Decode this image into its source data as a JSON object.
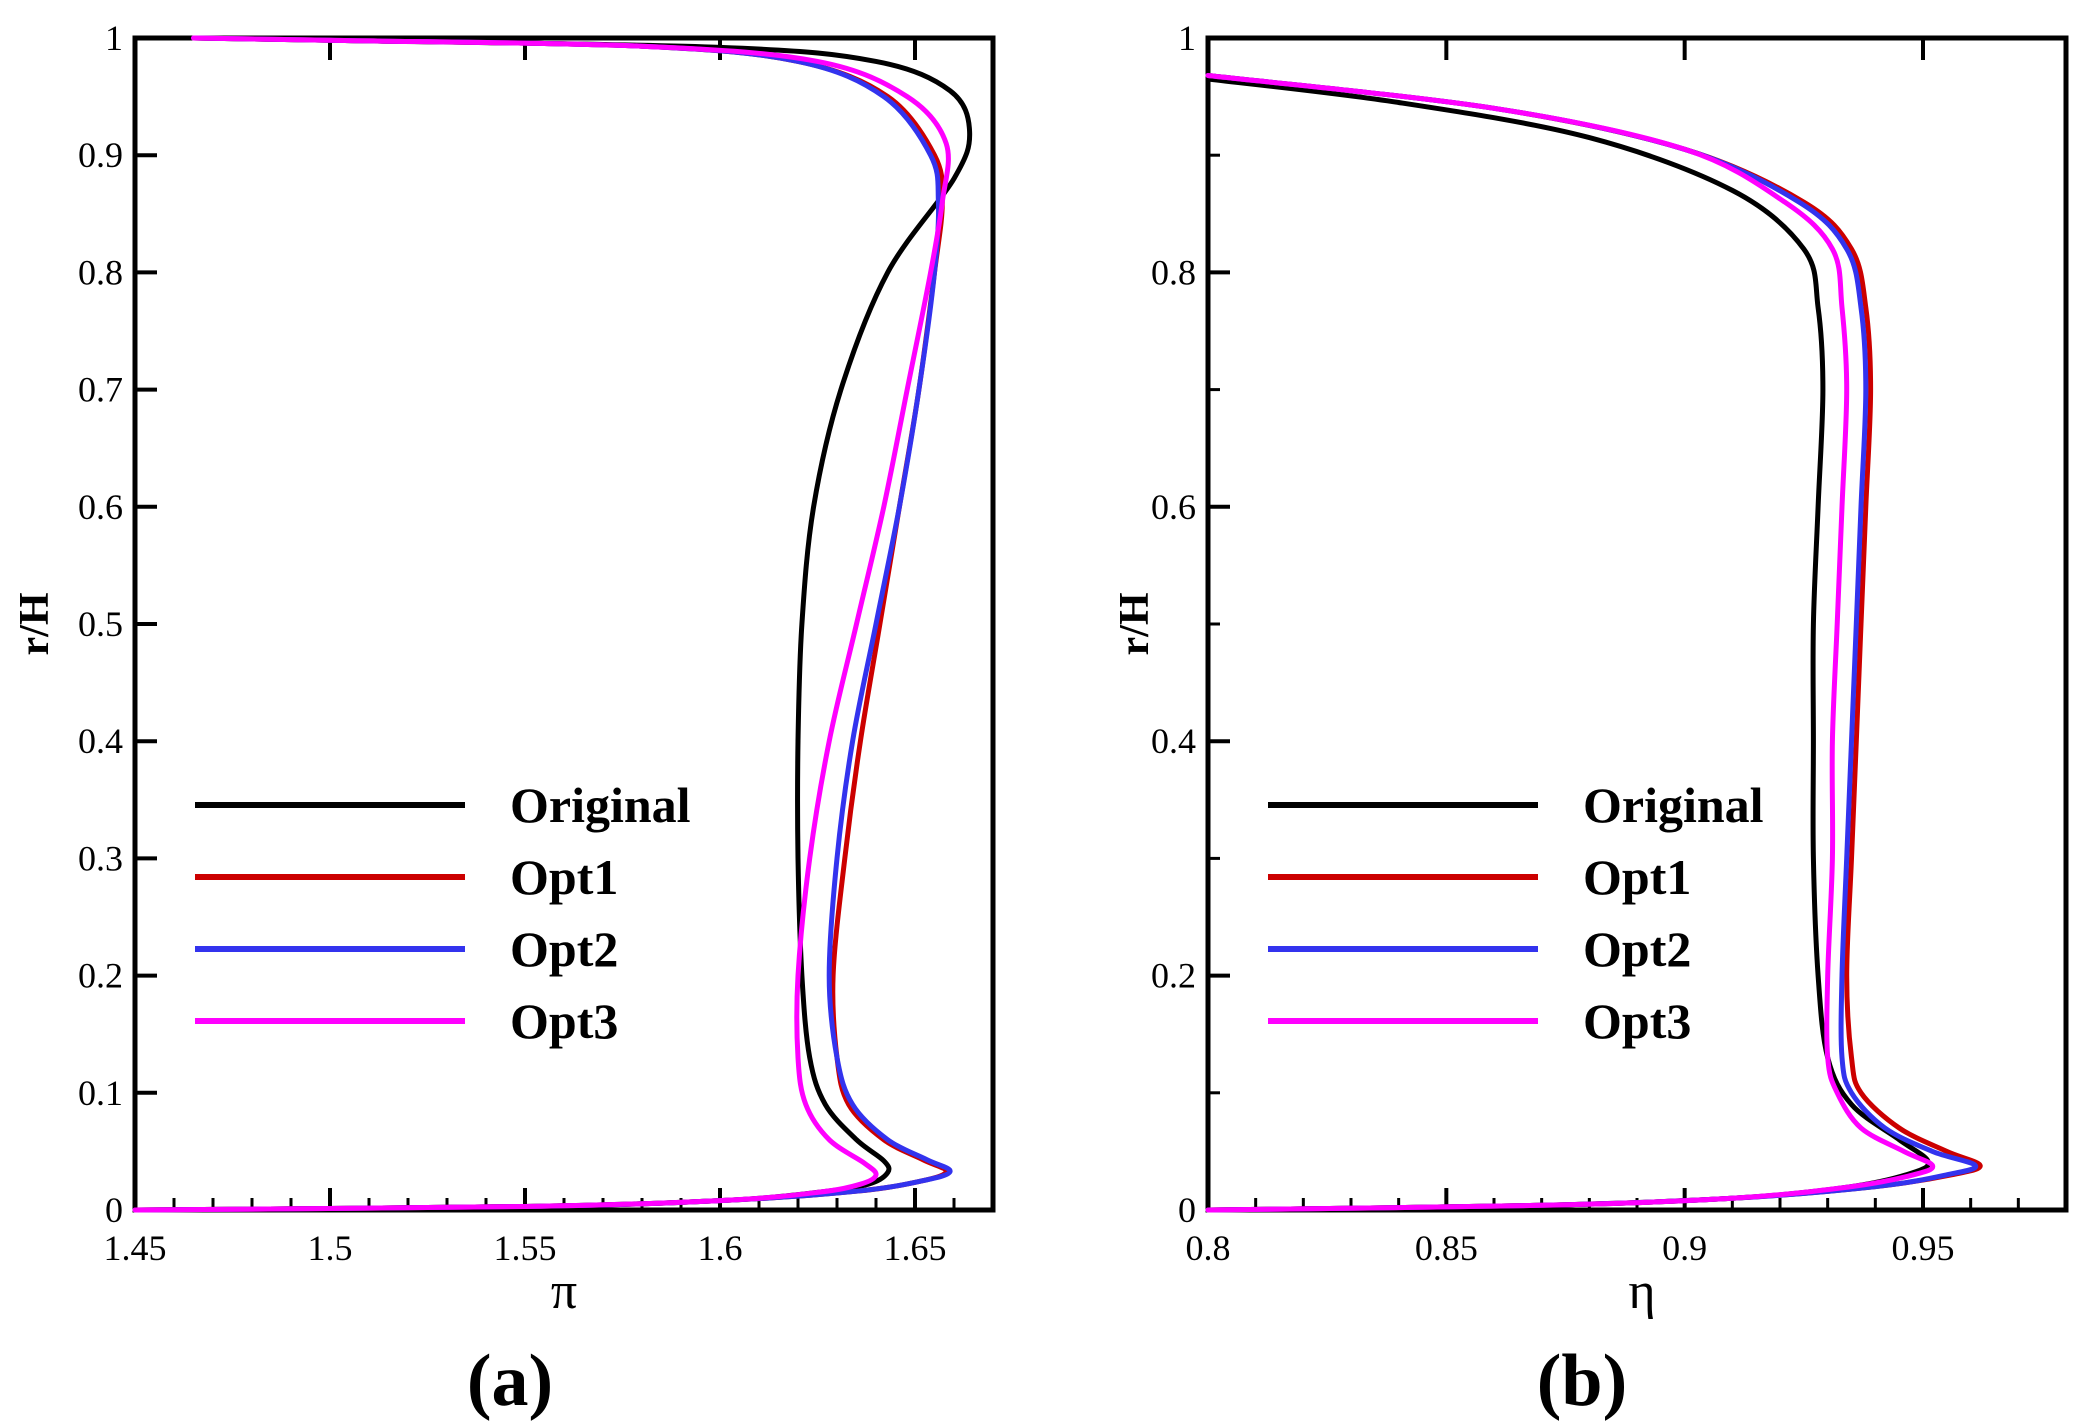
{
  "chart_data": [
    {
      "panel": "(a)",
      "type": "line",
      "xlabel": "π",
      "ylabel": "r/H",
      "xlim": [
        1.45,
        1.67
      ],
      "ylim": [
        0,
        1
      ],
      "xticks": [
        1.45,
        1.5,
        1.55,
        1.6,
        1.65
      ],
      "xtick_labels": [
        "1.45",
        "1.5",
        "1.55",
        "1.6",
        "1.65"
      ],
      "yticks": [
        0,
        0.1,
        0.2,
        0.3,
        0.4,
        0.5,
        0.6,
        0.7,
        0.8,
        0.9,
        1
      ],
      "ytick_labels": [
        "0",
        "0.1",
        "0.2",
        "0.3",
        "0.4",
        "0.5",
        "0.6",
        "0.7",
        "0.8",
        "0.9",
        "1"
      ],
      "legend_position": "lower-left",
      "series": [
        {
          "name": "Original",
          "color": "#000000",
          "points": [
            [
              1.45,
              0.0
            ],
            [
              1.55,
              0.003
            ],
            [
              1.6,
              0.008
            ],
            [
              1.625,
              0.015
            ],
            [
              1.638,
              0.022
            ],
            [
              1.643,
              0.032
            ],
            [
              1.642,
              0.042
            ],
            [
              1.635,
              0.06
            ],
            [
              1.627,
              0.09
            ],
            [
              1.623,
              0.13
            ],
            [
              1.621,
              0.2
            ],
            [
              1.62,
              0.3
            ],
            [
              1.62,
              0.4
            ],
            [
              1.621,
              0.5
            ],
            [
              1.624,
              0.6
            ],
            [
              1.631,
              0.7
            ],
            [
              1.643,
              0.8
            ],
            [
              1.66,
              0.88
            ],
            [
              1.664,
              0.92
            ],
            [
              1.659,
              0.955
            ],
            [
              1.64,
              0.98
            ],
            [
              1.6,
              0.992
            ],
            [
              1.5,
              0.998
            ],
            [
              1.465,
              1.0
            ]
          ]
        },
        {
          "name": "Opt1",
          "color": "#cc0000",
          "points": [
            [
              1.45,
              0.0
            ],
            [
              1.55,
              0.003
            ],
            [
              1.6,
              0.008
            ],
            [
              1.635,
              0.016
            ],
            [
              1.652,
              0.025
            ],
            [
              1.658,
              0.033
            ],
            [
              1.652,
              0.043
            ],
            [
              1.642,
              0.06
            ],
            [
              1.633,
              0.09
            ],
            [
              1.63,
              0.13
            ],
            [
              1.629,
              0.2
            ],
            [
              1.632,
              0.3
            ],
            [
              1.636,
              0.4
            ],
            [
              1.641,
              0.5
            ],
            [
              1.646,
              0.6
            ],
            [
              1.651,
              0.7
            ],
            [
              1.655,
              0.8
            ],
            [
              1.657,
              0.86
            ],
            [
              1.655,
              0.9
            ],
            [
              1.643,
              0.95
            ],
            [
              1.62,
              0.98
            ],
            [
              1.58,
              0.993
            ],
            [
              1.5,
              0.998
            ],
            [
              1.465,
              1.0
            ]
          ]
        },
        {
          "name": "Opt2",
          "color": "#3333ee",
          "points": [
            [
              1.45,
              0.0
            ],
            [
              1.55,
              0.003
            ],
            [
              1.6,
              0.008
            ],
            [
              1.635,
              0.016
            ],
            [
              1.652,
              0.025
            ],
            [
              1.659,
              0.033
            ],
            [
              1.653,
              0.043
            ],
            [
              1.643,
              0.06
            ],
            [
              1.634,
              0.09
            ],
            [
              1.63,
              0.13
            ],
            [
              1.628,
              0.2
            ],
            [
              1.63,
              0.3
            ],
            [
              1.634,
              0.4
            ],
            [
              1.64,
              0.5
            ],
            [
              1.646,
              0.6
            ],
            [
              1.651,
              0.7
            ],
            [
              1.655,
              0.8
            ],
            [
              1.656,
              0.86
            ],
            [
              1.654,
              0.9
            ],
            [
              1.642,
              0.95
            ],
            [
              1.62,
              0.98
            ],
            [
              1.58,
              0.993
            ],
            [
              1.5,
              0.998
            ],
            [
              1.465,
              1.0
            ]
          ]
        },
        {
          "name": "Opt3",
          "color": "#ff00ff",
          "points": [
            [
              1.45,
              0.0
            ],
            [
              1.55,
              0.003
            ],
            [
              1.6,
              0.008
            ],
            [
              1.625,
              0.015
            ],
            [
              1.636,
              0.022
            ],
            [
              1.64,
              0.03
            ],
            [
              1.637,
              0.04
            ],
            [
              1.628,
              0.06
            ],
            [
              1.622,
              0.09
            ],
            [
              1.62,
              0.13
            ],
            [
              1.62,
              0.2
            ],
            [
              1.623,
              0.3
            ],
            [
              1.628,
              0.4
            ],
            [
              1.635,
              0.5
            ],
            [
              1.642,
              0.6
            ],
            [
              1.648,
              0.7
            ],
            [
              1.654,
              0.8
            ],
            [
              1.657,
              0.86
            ],
            [
              1.658,
              0.91
            ],
            [
              1.648,
              0.95
            ],
            [
              1.625,
              0.98
            ],
            [
              1.58,
              0.993
            ],
            [
              1.5,
              0.998
            ],
            [
              1.465,
              1.0
            ]
          ]
        }
      ]
    },
    {
      "panel": "(b)",
      "type": "line",
      "xlabel": "η",
      "ylabel": "r/H",
      "xlim": [
        0.8,
        0.98
      ],
      "ylim": [
        0,
        1
      ],
      "xticks": [
        0.8,
        0.85,
        0.9,
        0.95
      ],
      "xtick_labels": [
        "0.8",
        "0.85",
        "0.9",
        "0.95"
      ],
      "yticks": [
        0,
        0.2,
        0.4,
        0.6,
        0.8,
        1
      ],
      "ytick_labels": [
        "0",
        "0.2",
        "0.4",
        "0.6",
        "0.8",
        "1"
      ],
      "legend_position": "lower-left",
      "series": [
        {
          "name": "Original",
          "color": "#000000",
          "points": [
            [
              0.8,
              0.0
            ],
            [
              0.87,
              0.004
            ],
            [
              0.91,
              0.01
            ],
            [
              0.935,
              0.02
            ],
            [
              0.948,
              0.032
            ],
            [
              0.951,
              0.042
            ],
            [
              0.945,
              0.06
            ],
            [
              0.935,
              0.09
            ],
            [
              0.93,
              0.13
            ],
            [
              0.928,
              0.2
            ],
            [
              0.927,
              0.3
            ],
            [
              0.927,
              0.4
            ],
            [
              0.927,
              0.5
            ],
            [
              0.928,
              0.6
            ],
            [
              0.929,
              0.7
            ],
            [
              0.928,
              0.77
            ],
            [
              0.925,
              0.82
            ],
            [
              0.91,
              0.87
            ],
            [
              0.88,
              0.915
            ],
            [
              0.84,
              0.945
            ],
            [
              0.8,
              0.965
            ]
          ]
        },
        {
          "name": "Opt1",
          "color": "#cc0000",
          "points": [
            [
              0.8,
              0.0
            ],
            [
              0.87,
              0.004
            ],
            [
              0.91,
              0.01
            ],
            [
              0.94,
              0.02
            ],
            [
              0.956,
              0.03
            ],
            [
              0.962,
              0.038
            ],
            [
              0.955,
              0.05
            ],
            [
              0.945,
              0.07
            ],
            [
              0.937,
              0.1
            ],
            [
              0.935,
              0.13
            ],
            [
              0.934,
              0.2
            ],
            [
              0.935,
              0.3
            ],
            [
              0.936,
              0.4
            ],
            [
              0.937,
              0.5
            ],
            [
              0.938,
              0.6
            ],
            [
              0.939,
              0.7
            ],
            [
              0.938,
              0.77
            ],
            [
              0.935,
              0.82
            ],
            [
              0.925,
              0.86
            ],
            [
              0.9,
              0.905
            ],
            [
              0.86,
              0.94
            ],
            [
              0.8,
              0.968
            ]
          ]
        },
        {
          "name": "Opt2",
          "color": "#3333ee",
          "points": [
            [
              0.8,
              0.0
            ],
            [
              0.87,
              0.004
            ],
            [
              0.91,
              0.01
            ],
            [
              0.94,
              0.02
            ],
            [
              0.955,
              0.03
            ],
            [
              0.961,
              0.038
            ],
            [
              0.952,
              0.05
            ],
            [
              0.942,
              0.07
            ],
            [
              0.935,
              0.1
            ],
            [
              0.933,
              0.13
            ],
            [
              0.933,
              0.2
            ],
            [
              0.934,
              0.3
            ],
            [
              0.935,
              0.4
            ],
            [
              0.936,
              0.5
            ],
            [
              0.937,
              0.6
            ],
            [
              0.938,
              0.7
            ],
            [
              0.937,
              0.77
            ],
            [
              0.934,
              0.82
            ],
            [
              0.924,
              0.86
            ],
            [
              0.9,
              0.905
            ],
            [
              0.86,
              0.94
            ],
            [
              0.8,
              0.968
            ]
          ]
        },
        {
          "name": "Opt3",
          "color": "#ff00ff",
          "points": [
            [
              0.8,
              0.0
            ],
            [
              0.87,
              0.004
            ],
            [
              0.91,
              0.01
            ],
            [
              0.935,
              0.02
            ],
            [
              0.948,
              0.03
            ],
            [
              0.952,
              0.038
            ],
            [
              0.946,
              0.05
            ],
            [
              0.937,
              0.07
            ],
            [
              0.932,
              0.1
            ],
            [
              0.93,
              0.13
            ],
            [
              0.93,
              0.2
            ],
            [
              0.931,
              0.3
            ],
            [
              0.931,
              0.4
            ],
            [
              0.932,
              0.5
            ],
            [
              0.933,
              0.6
            ],
            [
              0.934,
              0.7
            ],
            [
              0.933,
              0.77
            ],
            [
              0.931,
              0.82
            ],
            [
              0.921,
              0.86
            ],
            [
              0.9,
              0.905
            ],
            [
              0.86,
              0.94
            ],
            [
              0.8,
              0.968
            ]
          ]
        }
      ]
    }
  ]
}
